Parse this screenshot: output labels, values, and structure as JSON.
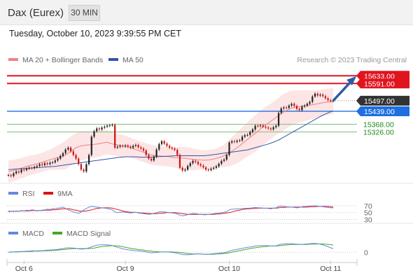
{
  "header": {
    "symbol": "Dax (Eurex)",
    "timeframe": "30 MIN",
    "datetime": "Tuesday, October 10, 2023 9:39:55 PM CET",
    "credit": "Research © 2023 Trading Central"
  },
  "legend": {
    "ma20_label": "MA 20 + Bollinger Bands",
    "ma50_label": "MA 50",
    "rsi_label": "RSI",
    "rsi_ma_label": "9MA",
    "macd_label": "MACD",
    "macd_signal_label": "MACD Signal"
  },
  "colors": {
    "resistance": "#e0141e",
    "current": "#333333",
    "pivot": "#1f6fe0",
    "support": "#1a8a1a",
    "ma20": "#f08080",
    "ma50": "#3355aa",
    "bollinger_fill": "#fde0e0",
    "candle_up": "#222222",
    "candle_down": "#cc1111",
    "rsi": "#6688dd",
    "rsi_ma": "#dd1111",
    "macd": "#6688dd",
    "macd_signal": "#44aa22",
    "arrow": "#2a5caa"
  },
  "chart_data": [
    {
      "type": "candlestick",
      "panel": "price",
      "x_ticks": [
        "Oct 6",
        "Oct 9",
        "Oct 10",
        "Oct 11"
      ],
      "ylim": [
        15060,
        15680
      ],
      "levels": [
        {
          "label": "15633.00",
          "value": 15633,
          "kind": "resistance"
        },
        {
          "label": "15591.00",
          "value": 15591,
          "kind": "resistance"
        },
        {
          "label": "15497.00",
          "value": 15497,
          "kind": "current"
        },
        {
          "label": "15439.00",
          "value": 15439,
          "kind": "pivot"
        },
        {
          "label": "15368.00",
          "value": 15368,
          "kind": "support"
        },
        {
          "label": "15326.00",
          "value": 15326,
          "kind": "support"
        }
      ],
      "close": [
        15090,
        15085,
        15100,
        15110,
        15105,
        15120,
        15118,
        15125,
        15130,
        15128,
        15135,
        15140,
        15150,
        15145,
        15155,
        15150,
        15158,
        15160,
        15170,
        15180,
        15195,
        15210,
        15230,
        15240,
        15220,
        15200,
        15180,
        15150,
        15120,
        15110,
        15150,
        15200,
        15300,
        15330,
        15345,
        15340,
        15350,
        15355,
        15360,
        15362,
        15365,
        15240,
        15245,
        15250,
        15248,
        15252,
        15246,
        15240,
        15250,
        15255,
        15242,
        15235,
        15225,
        15200,
        15180,
        15170,
        15190,
        15230,
        15260,
        15275,
        15262,
        15250,
        15240,
        15235,
        15228,
        15200,
        15130,
        15115,
        15120,
        15140,
        15155,
        15168,
        15162,
        15150,
        15142,
        15132,
        15120,
        15118,
        15125,
        15130,
        15138,
        15152,
        15168,
        15175,
        15200,
        15268,
        15275,
        15272,
        15278,
        15280,
        15300,
        15308,
        15310,
        15325,
        15340,
        15360,
        15358,
        15362,
        15355,
        15350,
        15345,
        15340,
        15352,
        15360,
        15430,
        15455,
        15460,
        15458,
        15470,
        15480,
        15468,
        15452,
        15445,
        15465,
        15470,
        15480,
        15490,
        15520,
        15535,
        15525,
        15530,
        15522,
        15510,
        15500,
        15495,
        15497
      ],
      "ma20": [
        15110,
        15112,
        15115,
        15120,
        15125,
        15128,
        15132,
        15138,
        15142,
        15145,
        15148,
        15152,
        15156,
        15160,
        15165,
        15170,
        15174,
        15178,
        15182,
        15186,
        15190,
        15195,
        15200,
        15210,
        15220,
        15230,
        15240,
        15245,
        15250,
        15252,
        15254,
        15255,
        15256,
        15258,
        15260,
        15262,
        15265,
        15268,
        15270,
        15265,
        15260,
        15258,
        15255,
        15252,
        15250,
        15248,
        15245,
        15240,
        15235,
        15230,
        15225,
        15220,
        15215,
        15210,
        15205,
        15200,
        15198,
        15196,
        15195,
        15194,
        15193,
        15192,
        15190,
        15188,
        15186,
        15185,
        15184,
        15183,
        15182,
        15180,
        15178,
        15176,
        15175,
        15174,
        15173,
        15172,
        15172,
        15173,
        15175,
        15178,
        15182,
        15186,
        15190,
        15196,
        15203,
        15210,
        15220,
        15230,
        15240,
        15250,
        15262,
        15274,
        15285,
        15296,
        15307,
        15318,
        15330,
        15342,
        15354,
        15365,
        15375,
        15385,
        15395,
        15405,
        15415,
        15425,
        15435,
        15443,
        15450,
        15456,
        15460,
        15463,
        15465,
        15467,
        15469,
        15471,
        15473,
        15475,
        15477,
        15480,
        15483,
        15486,
        15488,
        15490,
        15492,
        15494
      ],
      "ma50": [
        15120,
        15121,
        15122,
        15123,
        15124,
        15125,
        15126,
        15127,
        15128,
        15129,
        15130,
        15131,
        15132,
        15133,
        15134,
        15135,
        15136,
        15137,
        15138,
        15140,
        15142,
        15144,
        15146,
        15148,
        15150,
        15152,
        15154,
        15156,
        15158,
        15160,
        15162,
        15164,
        15166,
        15168,
        15170,
        15172,
        15174,
        15176,
        15178,
        15180,
        15182,
        15184,
        15186,
        15188,
        15189,
        15190,
        15190,
        15190,
        15190,
        15190,
        15189,
        15188,
        15188,
        15188,
        15188,
        15189,
        15190,
        15190,
        15191,
        15192,
        15192,
        15193,
        15194,
        15195,
        15196,
        15196,
        15196,
        15196,
        15196,
        15196,
        15196,
        15196,
        15196,
        15196,
        15196,
        15196,
        15197,
        15198,
        15200,
        15202,
        15204,
        15206,
        15208,
        15210,
        15212,
        15214,
        15216,
        15218,
        15220,
        15222,
        15224,
        15226,
        15228,
        15232,
        15236,
        15240,
        15244,
        15248,
        15252,
        15256,
        15260,
        15265,
        15270,
        15276,
        15282,
        15290,
        15298,
        15306,
        15314,
        15322,
        15330,
        15338,
        15346,
        15354,
        15362,
        15370,
        15378,
        15386,
        15394,
        15402,
        15410,
        15418,
        15424,
        15430,
        15436,
        15442
      ]
    },
    {
      "type": "line",
      "panel": "RSI",
      "y_ticks": [
        "70",
        "50",
        "30"
      ],
      "ylim": [
        25,
        78
      ],
      "series": [
        {
          "name": "RSI",
          "values": [
            52,
            54,
            53,
            55,
            54,
            56,
            55,
            57,
            56,
            58,
            57,
            55,
            56,
            57,
            58,
            60,
            59,
            61,
            62,
            63,
            64,
            66,
            62,
            58,
            55,
            52,
            50,
            48,
            52,
            58,
            62,
            66,
            68,
            67,
            66,
            65,
            64,
            63,
            62,
            60,
            58,
            52,
            50,
            51,
            52,
            51,
            50,
            49,
            50,
            51,
            49,
            48,
            47,
            46,
            45,
            46,
            48,
            50,
            52,
            53,
            52,
            51,
            50,
            49,
            48,
            46,
            42,
            41,
            42,
            44,
            46,
            48,
            47,
            46,
            45,
            44,
            44,
            45,
            46,
            47,
            48,
            49,
            50,
            51,
            53,
            58,
            60,
            60,
            61,
            61,
            62,
            62,
            63,
            63,
            64,
            65,
            64,
            64,
            63,
            63,
            62,
            61,
            63,
            64,
            68,
            69,
            68,
            67,
            66,
            66,
            65,
            64,
            65,
            67,
            68,
            68,
            69,
            70,
            70,
            69,
            68,
            67,
            66,
            65,
            64,
            64
          ]
        },
        {
          "name": "9MA",
          "values": [
            54,
            54,
            54,
            54,
            54,
            55,
            55,
            55,
            55,
            56,
            56,
            56,
            56,
            56,
            57,
            57,
            57,
            58,
            58,
            59,
            60,
            61,
            61,
            61,
            60,
            58,
            57,
            55,
            54,
            54,
            55,
            56,
            58,
            60,
            62,
            63,
            64,
            64,
            64,
            64,
            63,
            61,
            59,
            57,
            55,
            53,
            52,
            51,
            51,
            51,
            50,
            49,
            49,
            48,
            48,
            47,
            47,
            47,
            48,
            48,
            49,
            50,
            50,
            50,
            50,
            49,
            48,
            47,
            46,
            45,
            45,
            45,
            45,
            45,
            45,
            45,
            45,
            45,
            45,
            45,
            46,
            46,
            47,
            48,
            49,
            50,
            52,
            54,
            56,
            57,
            59,
            60,
            61,
            61,
            62,
            62,
            63,
            63,
            63,
            63,
            63,
            63,
            63,
            63,
            64,
            65,
            65,
            66,
            66,
            66,
            66,
            66,
            66,
            66,
            66,
            66,
            67,
            67,
            67,
            68,
            68,
            68,
            68,
            68,
            67,
            66
          ]
        }
      ]
    },
    {
      "type": "line",
      "panel": "MACD",
      "y_ticks": [
        "0"
      ],
      "ylim": [
        -40,
        55
      ],
      "series": [
        {
          "name": "MACD",
          "values": [
            0,
            1,
            1,
            2,
            2,
            3,
            3,
            4,
            4,
            5,
            5,
            5,
            6,
            6,
            7,
            8,
            8,
            9,
            10,
            11,
            12,
            14,
            16,
            17,
            17,
            16,
            15,
            13,
            12,
            12,
            14,
            17,
            21,
            24,
            27,
            28,
            29,
            29,
            28,
            27,
            26,
            22,
            19,
            16,
            13,
            11,
            9,
            8,
            7,
            6,
            5,
            4,
            3,
            1,
            -1,
            -2,
            -2,
            -1,
            0,
            1,
            1,
            1,
            0,
            -1,
            -2,
            -4,
            -7,
            -9,
            -10,
            -10,
            -9,
            -8,
            -7,
            -7,
            -7,
            -8,
            -8,
            -8,
            -7,
            -6,
            -5,
            -4,
            -3,
            -2,
            0,
            4,
            7,
            9,
            11,
            13,
            15,
            17,
            19,
            20,
            22,
            24,
            25,
            26,
            26,
            26,
            25,
            24,
            24,
            25,
            28,
            31,
            32,
            33,
            33,
            33,
            32,
            31,
            30,
            30,
            31,
            32,
            33,
            34,
            34,
            33,
            31,
            28,
            25,
            21,
            17,
            14
          ]
        },
        {
          "name": "MACD Signal",
          "values": [
            0,
            0,
            1,
            1,
            1,
            2,
            2,
            3,
            3,
            3,
            4,
            4,
            4,
            5,
            5,
            6,
            6,
            7,
            7,
            8,
            9,
            10,
            11,
            12,
            13,
            14,
            14,
            14,
            14,
            14,
            14,
            14,
            15,
            16,
            18,
            20,
            22,
            23,
            24,
            25,
            25,
            25,
            24,
            23,
            21,
            19,
            17,
            15,
            13,
            12,
            10,
            9,
            8,
            6,
            5,
            4,
            3,
            2,
            1,
            1,
            1,
            1,
            1,
            1,
            0,
            0,
            -1,
            -2,
            -4,
            -5,
            -6,
            -7,
            -7,
            -7,
            -7,
            -8,
            -8,
            -8,
            -8,
            -8,
            -7,
            -7,
            -6,
            -5,
            -4,
            -2,
            0,
            2,
            4,
            6,
            8,
            10,
            12,
            14,
            16,
            17,
            19,
            20,
            21,
            22,
            23,
            24,
            24,
            24,
            25,
            26,
            27,
            28,
            29,
            30,
            30,
            30,
            30,
            30,
            30,
            30,
            31,
            31,
            31,
            32,
            32,
            32,
            31,
            30,
            29,
            28
          ]
        }
      ]
    }
  ]
}
